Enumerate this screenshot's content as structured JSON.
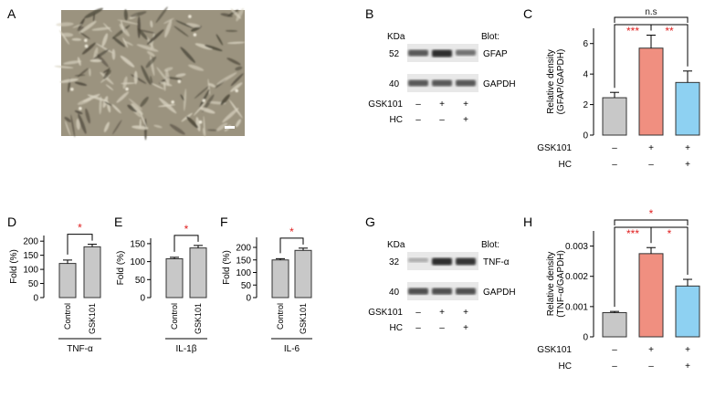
{
  "panels": {
    "A": {
      "letter": "A"
    },
    "B": {
      "letter": "B",
      "kda_label": "KDa",
      "blot_label": "Blot:",
      "bands": [
        {
          "kda": "52",
          "protein": "GFAP"
        },
        {
          "kda": "40",
          "protein": "GAPDH"
        }
      ],
      "conditions": [
        {
          "label": "GSK101",
          "signs": [
            "–",
            "+",
            "+"
          ]
        },
        {
          "label": "HC",
          "signs": [
            "–",
            "–",
            "+"
          ]
        }
      ],
      "band_intensity": {
        "GFAP": [
          0.75,
          1.0,
          0.6
        ],
        "GAPDH": [
          0.75,
          0.75,
          0.75
        ]
      }
    },
    "G": {
      "letter": "G",
      "kda_label": "KDa",
      "blot_label": "Blot:",
      "bands": [
        {
          "kda": "32",
          "protein": "TNF-α"
        },
        {
          "kda": "40",
          "protein": "GAPDH"
        }
      ],
      "conditions": [
        {
          "label": "GSK101",
          "signs": [
            "–",
            "+",
            "+"
          ]
        },
        {
          "label": "HC",
          "signs": [
            "–",
            "–",
            "+"
          ]
        }
      ],
      "band_intensity": {
        "TNF-α": [
          0.25,
          1.0,
          0.95
        ],
        "GAPDH": [
          0.8,
          0.8,
          0.8
        ]
      }
    }
  },
  "chart_data": [
    {
      "id": "C",
      "letter": "C",
      "type": "bar",
      "ylabel": [
        "Relative density",
        "(GFAP/GAPDH)"
      ],
      "ylim": [
        0,
        7
      ],
      "yticks": [
        0,
        2,
        4,
        6
      ],
      "values": [
        2.45,
        5.7,
        3.45
      ],
      "errors": [
        0.35,
        0.85,
        0.75
      ],
      "colors": [
        "#c8c8c8",
        "#f08f80",
        "#8ed1f2"
      ],
      "conditions": [
        {
          "label": "GSK101",
          "signs": [
            "–",
            "+",
            "+"
          ]
        },
        {
          "label": "HC",
          "signs": [
            "–",
            "–",
            "+"
          ]
        }
      ],
      "brackets": [
        {
          "from": 0,
          "to": 2,
          "level": 0,
          "marks": [
            {
              "text": "n.s",
              "color": "#222222",
              "at": 1
            }
          ]
        },
        {
          "from": 0,
          "to": 2,
          "level": 1,
          "marks": [
            {
              "text": "***",
              "color": "#e02020",
              "at": 0.5
            },
            {
              "text": "**",
              "color": "#e02020",
              "at": 1.5
            }
          ]
        }
      ]
    },
    {
      "id": "D",
      "letter": "D",
      "type": "bar",
      "ylabel": [
        "Fold (%)"
      ],
      "ylim": [
        0,
        220
      ],
      "yticks": [
        0,
        50,
        100,
        150,
        200
      ],
      "categories": [
        "Control",
        "GSK101"
      ],
      "values": [
        121,
        180
      ],
      "errors": [
        12,
        9
      ],
      "colors": [
        "#c8c8c8",
        "#c8c8c8"
      ],
      "group_label": "TNF-α",
      "sig": "*"
    },
    {
      "id": "E",
      "letter": "E",
      "type": "bar",
      "ylabel": [
        "Fold (%)"
      ],
      "ylim": [
        0,
        165
      ],
      "yticks": [
        0,
        50,
        100,
        150
      ],
      "categories": [
        "Control",
        "GSK101"
      ],
      "values": [
        108,
        138
      ],
      "errors": [
        4,
        7
      ],
      "colors": [
        "#c8c8c8",
        "#c8c8c8"
      ],
      "group_label": "IL-1β",
      "sig": "*"
    },
    {
      "id": "F",
      "letter": "F",
      "type": "bar",
      "ylabel": [
        "Fold (%)"
      ],
      "ylim": [
        0,
        240
      ],
      "yticks": [
        0,
        50,
        100,
        150,
        200
      ],
      "categories": [
        "Control",
        "GSK101"
      ],
      "values": [
        150,
        188
      ],
      "errors": [
        5,
        9
      ],
      "colors": [
        "#c8c8c8",
        "#c8c8c8"
      ],
      "group_label": "IL-6",
      "sig": "*"
    },
    {
      "id": "H",
      "letter": "H",
      "type": "bar",
      "ylabel": [
        "Relative density",
        "(TNF-α/GAPDH)"
      ],
      "ylim": [
        0,
        0.0035
      ],
      "yticks": [
        0,
        0.001,
        0.002,
        0.003
      ],
      "ytick_labels": [
        "0",
        "0.001",
        "0.002",
        "0.003"
      ],
      "values": [
        0.0008,
        0.00275,
        0.00168
      ],
      "errors": [
        4e-05,
        0.0002,
        0.00022
      ],
      "colors": [
        "#c8c8c8",
        "#f08f80",
        "#8ed1f2"
      ],
      "conditions": [
        {
          "label": "GSK101",
          "signs": [
            "–",
            "+",
            "+"
          ]
        },
        {
          "label": "HC",
          "signs": [
            "–",
            "–",
            "+"
          ]
        }
      ],
      "brackets": [
        {
          "from": 0,
          "to": 2,
          "level": 0,
          "marks": [
            {
              "text": "*",
              "color": "#e02020",
              "at": 1
            }
          ]
        },
        {
          "from": 0,
          "to": 2,
          "level": 1,
          "marks": [
            {
              "text": "***",
              "color": "#e02020",
              "at": 0.5
            },
            {
              "text": "*",
              "color": "#e02020",
              "at": 1.5
            }
          ]
        }
      ]
    }
  ]
}
